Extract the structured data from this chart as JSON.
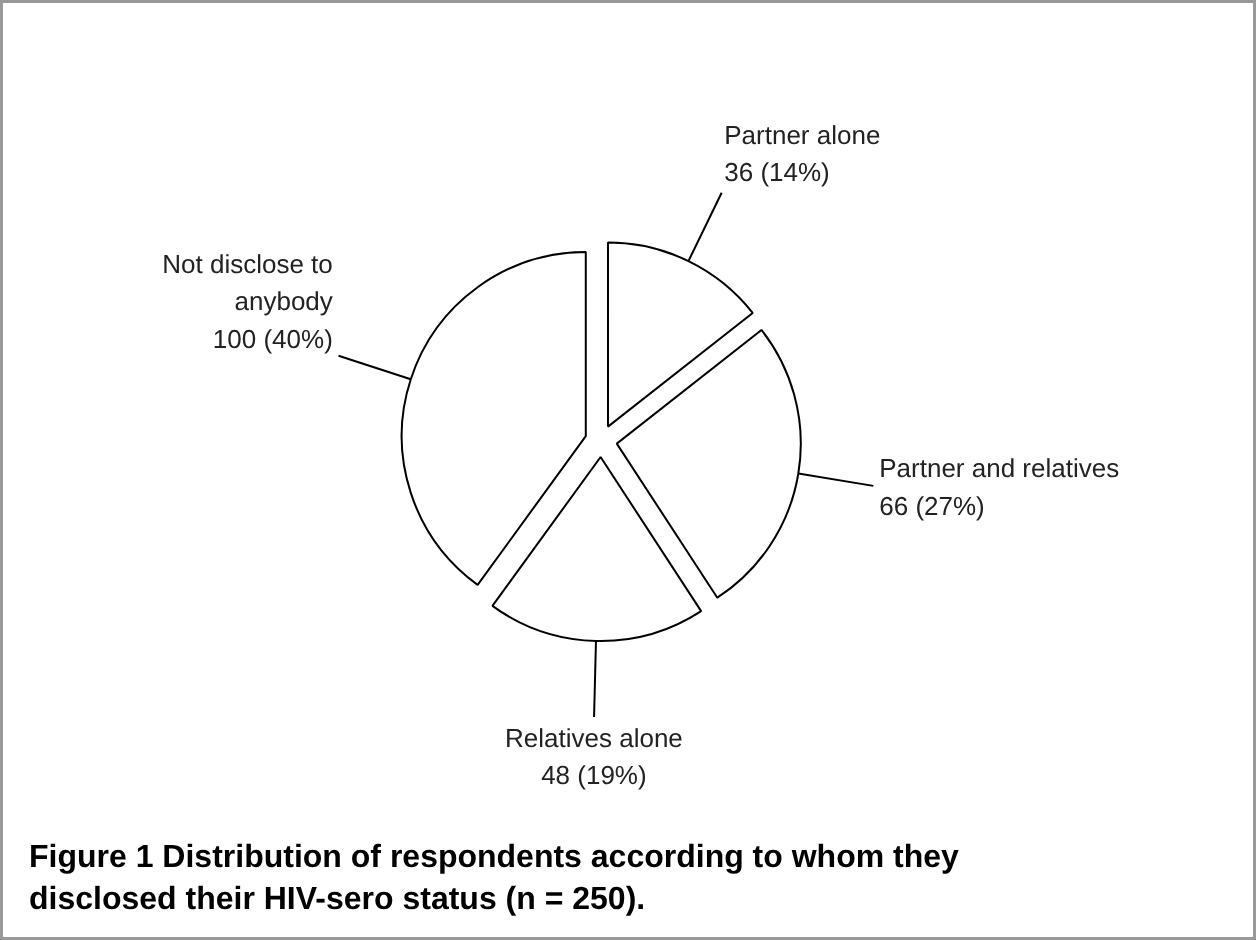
{
  "chart_data": {
    "type": "pie",
    "title": "Figure 1 Distribution of respondents according to whom they\ndisclosed their HIV-sero status (n = 250).",
    "categories": [
      "Partner alone",
      "Partner and relatives",
      "Relatives alone",
      "Not disclose to\nanybody"
    ],
    "values": [
      36,
      66,
      48,
      100
    ],
    "value_labels": [
      "36 (14%)",
      "66 (27%)",
      "48 (19%)",
      "100 (40%)"
    ],
    "colors": [
      "#ffffff",
      "#ffffff",
      "#ffffff",
      "#ffffff"
    ]
  }
}
